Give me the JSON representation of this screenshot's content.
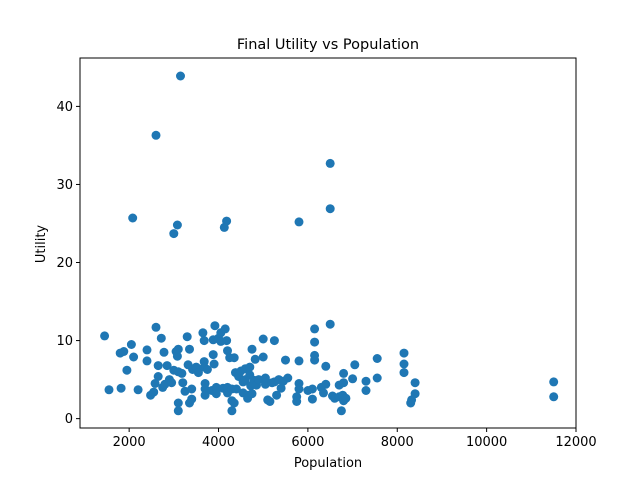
{
  "chart_data": {
    "type": "scatter",
    "title": "Final Utility vs Population",
    "xlabel": "Population",
    "ylabel": "Utility",
    "xlim": [
      900,
      12000
    ],
    "ylim": [
      -1.2,
      46.2
    ],
    "xticks": [
      2000,
      4000,
      6000,
      8000,
      10000,
      12000
    ],
    "yticks": [
      0,
      10,
      20,
      30,
      40
    ],
    "grid": false,
    "legend": "none",
    "marker_color": "#1f77b4",
    "points": [
      [
        1450,
        10.6
      ],
      [
        1550,
        3.7
      ],
      [
        1800,
        8.4
      ],
      [
        1820,
        3.9
      ],
      [
        1880,
        8.6
      ],
      [
        1950,
        6.2
      ],
      [
        2050,
        9.5
      ],
      [
        2100,
        7.9
      ],
      [
        2200,
        3.7
      ],
      [
        2400,
        8.8
      ],
      [
        2400,
        7.4
      ],
      [
        2480,
        3.0
      ],
      [
        2550,
        3.4
      ],
      [
        2580,
        4.5
      ],
      [
        2600,
        11.7
      ],
      [
        2650,
        6.8
      ],
      [
        2650,
        5.4
      ],
      [
        2720,
        10.3
      ],
      [
        2750,
        4.0
      ],
      [
        2780,
        8.5
      ],
      [
        2800,
        4.4
      ],
      [
        2850,
        6.8
      ],
      [
        2900,
        5.0
      ],
      [
        2950,
        4.6
      ],
      [
        3000,
        6.2
      ],
      [
        3050,
        8.6
      ],
      [
        3080,
        8.0
      ],
      [
        3100,
        8.9
      ],
      [
        3100,
        6.0
      ],
      [
        3100,
        2.0
      ],
      [
        3100,
        1.0
      ],
      [
        3180,
        5.8
      ],
      [
        3200,
        4.6
      ],
      [
        3250,
        3.5
      ],
      [
        3300,
        10.5
      ],
      [
        3320,
        6.9
      ],
      [
        3350,
        8.9
      ],
      [
        3350,
        2.0
      ],
      [
        3400,
        2.5
      ],
      [
        3400,
        3.8
      ],
      [
        3420,
        6.3
      ],
      [
        3500,
        6.6
      ],
      [
        3550,
        5.9
      ],
      [
        3650,
        11.0
      ],
      [
        3680,
        10.0
      ],
      [
        3680,
        7.3
      ],
      [
        3680,
        6.6
      ],
      [
        3700,
        4.5
      ],
      [
        3700,
        3.8
      ],
      [
        3700,
        3.0
      ],
      [
        3750,
        6.3
      ],
      [
        3850,
        3.6
      ],
      [
        3880,
        8.2
      ],
      [
        3880,
        10.1
      ],
      [
        3900,
        7.0
      ],
      [
        3920,
        11.9
      ],
      [
        3950,
        4.0
      ],
      [
        3950,
        3.2
      ],
      [
        4000,
        10.3
      ],
      [
        4050,
        9.9
      ],
      [
        4050,
        11.0
      ],
      [
        4100,
        3.9
      ],
      [
        4150,
        11.5
      ],
      [
        4180,
        10.0
      ],
      [
        4200,
        3.3
      ],
      [
        4200,
        4.0
      ],
      [
        4200,
        8.7
      ],
      [
        4250,
        7.8
      ],
      [
        4300,
        3.8
      ],
      [
        4300,
        2.3
      ],
      [
        4300,
        1.0
      ],
      [
        4350,
        2.0
      ],
      [
        4350,
        7.8
      ],
      [
        4380,
        5.9
      ],
      [
        4400,
        3.8
      ],
      [
        4450,
        5.4
      ],
      [
        4500,
        6.1
      ],
      [
        4550,
        4.7
      ],
      [
        4550,
        3.3
      ],
      [
        4600,
        6.4
      ],
      [
        4600,
        5.0
      ],
      [
        4650,
        3.0
      ],
      [
        4650,
        2.6
      ],
      [
        4700,
        5.6
      ],
      [
        4700,
        6.6
      ],
      [
        4720,
        4.2
      ],
      [
        4750,
        8.9
      ],
      [
        4750,
        3.2
      ],
      [
        4800,
        4.9
      ],
      [
        4820,
        7.6
      ],
      [
        4850,
        4.3
      ],
      [
        4900,
        5.0
      ],
      [
        5000,
        10.2
      ],
      [
        5000,
        7.9
      ],
      [
        5050,
        4.4
      ],
      [
        5050,
        5.2
      ],
      [
        5100,
        2.4
      ],
      [
        5150,
        2.2
      ],
      [
        5200,
        4.6
      ],
      [
        5250,
        10.0
      ],
      [
        5250,
        4.7
      ],
      [
        5300,
        3.0
      ],
      [
        5350,
        5.0
      ],
      [
        5400,
        3.9
      ],
      [
        5450,
        4.8
      ],
      [
        5500,
        7.5
      ],
      [
        5550,
        5.2
      ],
      [
        5750,
        2.8
      ],
      [
        5750,
        2.2
      ],
      [
        5800,
        7.4
      ],
      [
        5800,
        4.5
      ],
      [
        5800,
        3.8
      ],
      [
        6000,
        3.6
      ],
      [
        6100,
        3.8
      ],
      [
        6100,
        2.5
      ],
      [
        6150,
        11.5
      ],
      [
        6150,
        9.8
      ],
      [
        6150,
        8.1
      ],
      [
        6150,
        7.5
      ],
      [
        6300,
        4.0
      ],
      [
        6350,
        3.3
      ],
      [
        6400,
        4.4
      ],
      [
        6400,
        6.7
      ],
      [
        6500,
        12.1
      ],
      [
        6550,
        2.9
      ],
      [
        6600,
        2.6
      ],
      [
        6700,
        4.3
      ],
      [
        6700,
        2.8
      ],
      [
        6750,
        1.0
      ],
      [
        6780,
        3.0
      ],
      [
        6800,
        5.8
      ],
      [
        6800,
        4.6
      ],
      [
        6800,
        2.3
      ],
      [
        6850,
        2.6
      ],
      [
        7000,
        5.1
      ],
      [
        7050,
        6.9
      ],
      [
        7300,
        4.8
      ],
      [
        7300,
        3.6
      ],
      [
        7550,
        7.7
      ],
      [
        7550,
        5.2
      ],
      [
        8150,
        8.4
      ],
      [
        8150,
        7.0
      ],
      [
        8150,
        5.9
      ],
      [
        8300,
        2.0
      ],
      [
        8320,
        2.4
      ],
      [
        8400,
        4.6
      ],
      [
        8400,
        3.2
      ],
      [
        11500,
        4.7
      ],
      [
        11500,
        2.8
      ],
      [
        2080,
        25.7
      ],
      [
        2600,
        36.3
      ],
      [
        3000,
        23.7
      ],
      [
        3080,
        24.8
      ],
      [
        3150,
        43.9
      ],
      [
        4130,
        24.5
      ],
      [
        4180,
        25.3
      ],
      [
        5800,
        25.2
      ],
      [
        6500,
        26.9
      ],
      [
        6500,
        32.7
      ]
    ]
  }
}
